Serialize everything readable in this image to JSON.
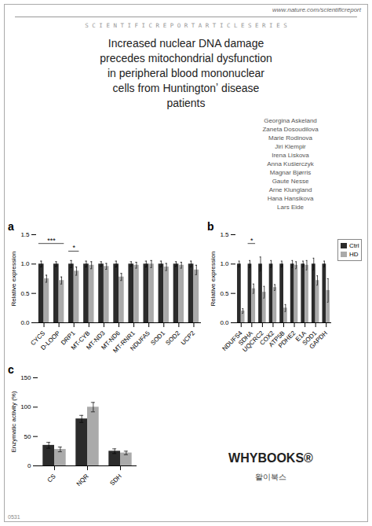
{
  "header_url": "www.nature.com/scientificreport",
  "series_text": "S C I E N T I F I C R E P O R T A R T I C L E S E R I E S",
  "title": [
    "Increased nuclear DNA damage",
    "precedes mitochondrial dysfunction",
    "in peripheral blood mononuclear",
    "cells from Huntingtonʼ disease",
    "patients"
  ],
  "authors": [
    "Georgina Askeland",
    "Zaneta Dosoudilova",
    "Marie Rodinova",
    "Jiri Klempir",
    "Irena Liskova",
    "Anna Kuśierczyk",
    "Magnar Bjørris",
    "Gaute Nesse",
    "Arne Klungland",
    "Hana Hansikova",
    "Lars Eide"
  ],
  "logo": [
    "WHYBOOKS®",
    "왈이북스"
  ],
  "corner_text": "0531",
  "chart_data": [
    {
      "type": "bar",
      "title": "a",
      "ylabel": "Relative expression",
      "categories": [
        "CYCS",
        "D-LOOP",
        "DRP1",
        "MT-CYB",
        "MT-ND3",
        "MT-ND6",
        "MT-RNR1",
        "NDUFA5",
        "SOD1",
        "SOD2",
        "UCP2"
      ],
      "series": [
        {
          "name": "Ctrl",
          "color": "#2b2b2b",
          "values": [
            1.0,
            1.0,
            1.0,
            1.0,
            1.0,
            1.0,
            1.0,
            1.0,
            1.0,
            1.0,
            1.0
          ],
          "errors": [
            0.05,
            0.04,
            0.06,
            0.05,
            0.04,
            0.05,
            0.04,
            0.05,
            0.05,
            0.04,
            0.05
          ]
        },
        {
          "name": "HD",
          "color": "#aaaaaa",
          "values": [
            0.75,
            0.72,
            0.88,
            0.98,
            0.96,
            0.78,
            0.98,
            1.0,
            0.95,
            0.98,
            0.9
          ],
          "errors": [
            0.06,
            0.06,
            0.07,
            0.06,
            0.05,
            0.06,
            0.05,
            0.06,
            0.06,
            0.05,
            0.08
          ]
        }
      ],
      "ylim": [
        0,
        1.5
      ],
      "yticks": [
        {
          "value": 0,
          "label": "0.0"
        },
        0.5,
        {
          "value": 1,
          "label": "1.0"
        },
        1.5
      ],
      "annotations": [
        {
          "text": "***",
          "categories": [
            "CYCS",
            "D-LOOP"
          ],
          "y": 1.35
        },
        {
          "text": "*",
          "categories": [
            "DRP1"
          ],
          "y": 1.22
        }
      ]
    },
    {
      "type": "bar",
      "title": "b",
      "ylabel": "Relative expression",
      "categories": [
        "NDUFS4",
        "SDHA",
        "UQCRC2",
        "COX2",
        "ATP5B",
        "PDHE2",
        "E1A",
        "SOD1",
        "GAPDH"
      ],
      "series": [
        {
          "name": "Ctrl",
          "color": "#2b2b2b",
          "values": [
            1.0,
            1.0,
            1.0,
            1.0,
            1.0,
            1.0,
            1.0,
            1.0,
            1.0
          ],
          "errors": [
            0.05,
            0.06,
            0.12,
            0.06,
            0.05,
            0.06,
            0.05,
            0.1,
            0.05
          ]
        },
        {
          "name": "HD",
          "color": "#aaaaaa",
          "values": [
            0.2,
            0.58,
            0.52,
            0.6,
            0.25,
            0.98,
            0.98,
            0.72,
            0.55
          ],
          "errors": [
            0.04,
            0.08,
            0.1,
            0.05,
            0.06,
            0.06,
            0.08,
            0.08,
            0.2
          ]
        }
      ],
      "ylim": [
        0,
        1.5
      ],
      "yticks": [
        {
          "value": 0,
          "label": "0.0"
        },
        0.5,
        {
          "value": 1,
          "label": "1.0"
        },
        1.5
      ],
      "annotations": [
        {
          "text": "*",
          "categories": [
            "SDHA"
          ],
          "y": 1.35
        }
      ],
      "legend": "right"
    },
    {
      "type": "bar",
      "title": "c",
      "ylabel": "Enzymatic activity (%)",
      "categories": [
        "CS",
        "NQR",
        "SDH"
      ],
      "series": [
        {
          "name": "Ctrl",
          "color": "#2b2b2b",
          "values": [
            35,
            80,
            25
          ],
          "errors": [
            5,
            6,
            4
          ]
        },
        {
          "name": "HD",
          "color": "#aaaaaa",
          "values": [
            28,
            100,
            22
          ],
          "errors": [
            4,
            8,
            3
          ]
        }
      ],
      "ylim": [
        0,
        150
      ],
      "yticks": [
        0,
        50,
        100,
        150
      ]
    }
  ]
}
